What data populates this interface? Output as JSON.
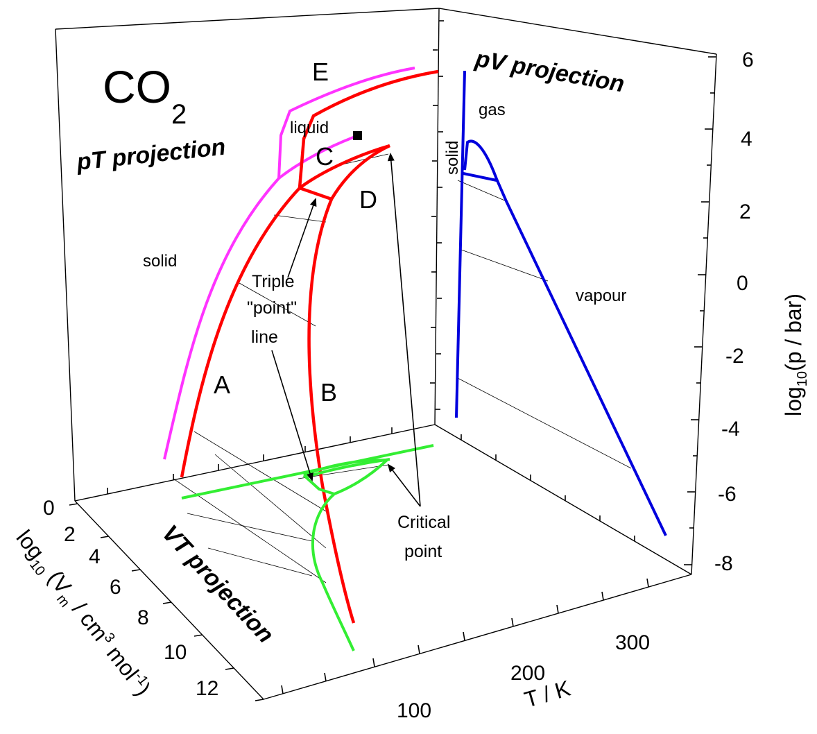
{
  "compound": {
    "main": "CO",
    "subscript": "2"
  },
  "projections": {
    "pt": "pT projection",
    "pv": "pV projection",
    "vt": "VT projection"
  },
  "regions": {
    "solid_pt": "solid",
    "liquid": "liquid",
    "gas": "gas",
    "solid_pv": "solid",
    "vapour": "vapour"
  },
  "curve_labels": {
    "a": "A",
    "b": "B",
    "c": "C",
    "d": "D",
    "e": "E"
  },
  "annotations": {
    "triple_line_1": "Triple",
    "triple_line_2": "\"point\"",
    "triple_line_3": "line",
    "critical_line_1": "Critical",
    "critical_line_2": "point"
  },
  "axes": {
    "p": {
      "title_main": "log",
      "title_sub": "10",
      "title_rest": "(p / bar)",
      "ticks": [
        "6",
        "4",
        "2",
        "0",
        "-2",
        "-4",
        "-6",
        "-8"
      ]
    },
    "v": {
      "title_main": "log",
      "title_sub": "10",
      "title_mid": " (V",
      "title_sub2": "m",
      "title_mid2": " / cm",
      "title_sup": "3",
      "title_mid3": " mol",
      "title_sup2": "-1",
      "title_end": ")",
      "ticks": [
        "0",
        "2",
        "4",
        "6",
        "8",
        "10",
        "12"
      ]
    },
    "t": {
      "title": "T / K",
      "ticks": [
        "100",
        "200",
        "300"
      ]
    }
  },
  "colors": {
    "pt_curve": "#ff0000",
    "pt_magenta": "#ff33ff",
    "pv_curve": "#0000dd",
    "vt_curve": "#33ee33",
    "axes": "#000000"
  }
}
